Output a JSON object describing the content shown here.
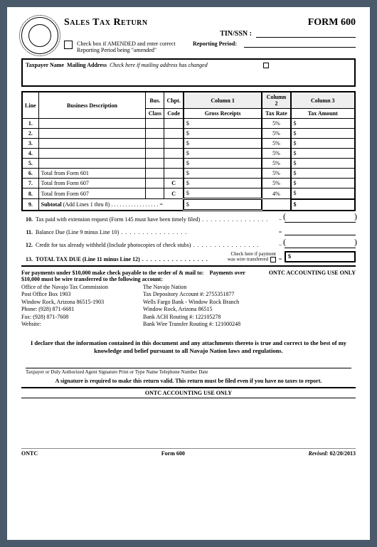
{
  "form": {
    "number": "FORM 600",
    "title": "Sales Tax Return",
    "tin_label": "TIN/SSN :",
    "tin_value": "",
    "amended_text": "Check box if AMENDED and enter correct Reporting Period being \"amended\"",
    "reporting_period_label": "Reporting Period:",
    "reporting_period_value": ""
  },
  "namebox": {
    "label1": "Taxpayer Name",
    "label2": "Mailing Address",
    "hint": "Check here if mailing address has changed"
  },
  "table": {
    "headers": {
      "line": "Line",
      "desc": "Business Description",
      "bus": "Bus.\nClass",
      "chpt": "Chpt.\nCode",
      "col1": "Column 1",
      "gross": "Gross Receipts",
      "col2": "Column 2",
      "rate": "Tax Rate",
      "col3": "Column 3",
      "amt": "Tax Amount"
    },
    "rows": [
      {
        "n": "1.",
        "desc": "",
        "bus": "",
        "chpt": "",
        "gross": "",
        "rate": "5%",
        "amt": ""
      },
      {
        "n": "2.",
        "desc": "",
        "bus": "",
        "chpt": "",
        "gross": "",
        "rate": "5%",
        "amt": ""
      },
      {
        "n": "3.",
        "desc": "",
        "bus": "",
        "chpt": "",
        "gross": "",
        "rate": "5%",
        "amt": ""
      },
      {
        "n": "4.",
        "desc": "",
        "bus": "",
        "chpt": "",
        "gross": "",
        "rate": "5%",
        "amt": ""
      },
      {
        "n": "5.",
        "desc": "",
        "bus": "",
        "chpt": "",
        "gross": "",
        "rate": "5%",
        "amt": ""
      },
      {
        "n": "6.",
        "desc": "Total from Form 601",
        "bus": "",
        "chpt": "",
        "gross": "",
        "rate": "5%",
        "amt": ""
      },
      {
        "n": "7.",
        "desc": "Total from Form 607",
        "bus": "",
        "chpt": "C",
        "gross": "",
        "rate": "5%",
        "amt": ""
      },
      {
        "n": "8.",
        "desc": "Total from Form 607",
        "bus": "",
        "chpt": "C",
        "gross": "",
        "rate": "4%",
        "amt": ""
      }
    ],
    "subtotal": {
      "n": "9.",
      "label": "Subtotal (Add Lines 1 thru 8)",
      "gross": "",
      "amt": ""
    }
  },
  "lines": {
    "l10": {
      "n": "10.",
      "txt": "Tax paid with extension request (Form 145 must have been timely filed)"
    },
    "l11": {
      "n": "11.",
      "txt": "Balance Due (Line 9 minus Line 10)"
    },
    "l12": {
      "n": "12.",
      "txt": "Credit for tax already withheld (Include photocopies of check stubs)"
    },
    "l13": {
      "n": "13.",
      "txt": "TOTAL TAX DUE (Line 11 minus Line 12)"
    },
    "wire": {
      "l1": "Check here if payment",
      "l2": "was wire transferred"
    }
  },
  "payments": {
    "under_hdr": "For payments under $10,000 make check payable to the order of & mail to:",
    "over_hdr": "Payments over $10,000 must be wire transferred to the following account:",
    "addr": [
      "Office of the Navajo Tax Commission",
      "Post Office Box 1903",
      "Window Rock, Arizona 86515-1903",
      "Phone: (928) 871-6681",
      "Fax: (928) 871-7608",
      "Website:"
    ],
    "bank": [
      "The Navajo Nation",
      "Tax Depository Account #: 2755351877",
      "Wells Fargo Bank - Window Rock Branch",
      "Window Rock, Arizona 86515",
      "Bank ACH Routing #: 122105278",
      "Bank Wire Transfer Routing #: 121000248"
    ],
    "ontc_use": "ONTC ACCOUNTING USE ONLY"
  },
  "declaration": "I declare that the information contained in this document and any attachments thereto is true and correct to the best of my knowledge and belief pursuant to all Navajo Nation laws and regulations.",
  "sigline": "Taxpayer or Duly Authorized Agent Signature    Print or Type Name    Telephone Number    Date",
  "sig_note": "A signature is required to make this return valid. This return must be filed even if you have no taxes to report.",
  "acct_use2": "ONTC ACCOUNTING USE ONLY",
  "footer": {
    "l": "ONTC",
    "m": "Form 600",
    "r": "Revised: 02/20/2013"
  }
}
